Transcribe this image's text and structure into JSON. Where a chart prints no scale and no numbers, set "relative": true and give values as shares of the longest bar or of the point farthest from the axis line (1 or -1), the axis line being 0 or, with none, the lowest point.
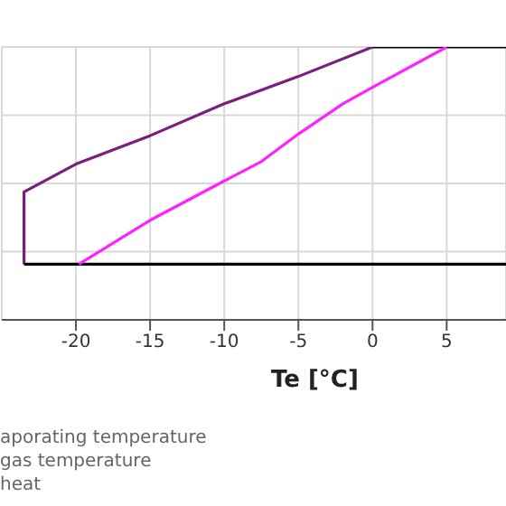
{
  "chart_data": {
    "type": "line",
    "relative": true,
    "xlabel": "Te [°C]",
    "xlim": [
      -25,
      9
    ],
    "xticks": [
      -20,
      -15,
      -10,
      -5,
      0,
      5
    ],
    "grid": true,
    "legend": false,
    "marker": "none",
    "line_style": "solid",
    "series": [
      {
        "color": "#7b1f7f",
        "x": [
          -23.5,
          -23.5,
          -20,
          -15,
          -10,
          -5,
          0
        ],
        "values": [
          0.204,
          0.469,
          0.571,
          0.675,
          0.792,
          0.892,
          1
        ]
      },
      {
        "color": "#000000",
        "x": [
          0,
          9
        ],
        "values": [
          1,
          1
        ]
      },
      {
        "color": "#000000",
        "x": [
          -23.5,
          9
        ],
        "values": [
          0.204,
          0.204
        ]
      },
      {
        "color": "#ff22ff",
        "x": [
          -19.8,
          -15,
          -10,
          -7.5,
          -5,
          -2,
          0,
          5
        ],
        "values": [
          0.204,
          0.365,
          0.509,
          0.58,
          0.681,
          0.792,
          0.852,
          1
        ]
      }
    ],
    "annotations": [
      "aporating temperature",
      "gas temperature",
      "heat"
    ]
  }
}
